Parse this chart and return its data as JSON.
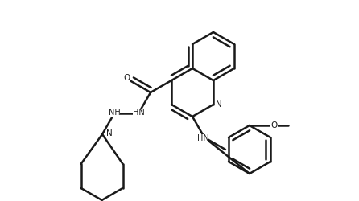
{
  "bg": "#ffffff",
  "lc": "#1a1a1a",
  "lw": 1.8,
  "figsize": [
    4.46,
    2.5
  ],
  "dpi": 100,
  "xlim": [
    0,
    4.46
  ],
  "ylim": [
    0,
    2.5
  ]
}
